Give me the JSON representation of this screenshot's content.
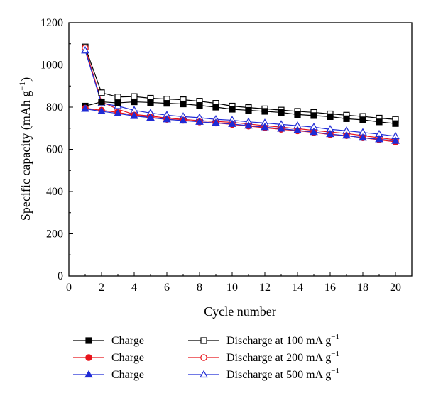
{
  "chart_data": {
    "type": "line",
    "xlabel": "Cycle number",
    "ylabel": "Specific capacity (mAh g",
    "ylabel_sup": "−1",
    "ylabel_close": ")",
    "xlim": [
      0,
      21
    ],
    "ylim": [
      0,
      1200
    ],
    "xticks": [
      0,
      2,
      4,
      6,
      8,
      10,
      12,
      14,
      16,
      18,
      20
    ],
    "yticks": [
      0,
      200,
      400,
      600,
      800,
      1000,
      1200
    ],
    "grid": false,
    "legend_position": "bottom",
    "x": [
      1,
      2,
      3,
      4,
      5,
      6,
      7,
      8,
      9,
      10,
      11,
      12,
      13,
      14,
      15,
      16,
      17,
      18,
      19,
      20
    ],
    "series": [
      {
        "name": "Charge",
        "marker": "square-filled",
        "color": "#000000",
        "values": [
          805,
          825,
          820,
          825,
          822,
          818,
          815,
          808,
          800,
          790,
          785,
          780,
          775,
          765,
          760,
          755,
          745,
          740,
          730,
          722
        ]
      },
      {
        "name": "Charge",
        "marker": "circle-filled",
        "color": "#e8141b",
        "values": [
          795,
          785,
          775,
          762,
          752,
          742,
          738,
          730,
          725,
          718,
          710,
          702,
          695,
          688,
          680,
          670,
          665,
          655,
          645,
          635
        ]
      },
      {
        "name": "Charge",
        "marker": "triangle-filled",
        "color": "#1f2bd6",
        "values": [
          792,
          780,
          770,
          758,
          750,
          742,
          736,
          730,
          725,
          720,
          712,
          705,
          698,
          690,
          682,
          672,
          665,
          655,
          648,
          640
        ]
      },
      {
        "name": "Discharge at 100 mA g",
        "name_sup": "−1",
        "marker": "square-open",
        "color": "#000000",
        "values": [
          1085,
          868,
          848,
          850,
          842,
          838,
          835,
          828,
          818,
          805,
          798,
          792,
          786,
          780,
          775,
          768,
          762,
          756,
          748,
          742
        ]
      },
      {
        "name": "Discharge at 200 mA g",
        "name_sup": "−1",
        "marker": "circle-open",
        "color": "#e8141b",
        "values": [
          1080,
          825,
          790,
          765,
          758,
          748,
          742,
          736,
          732,
          728,
          720,
          712,
          705,
          698,
          690,
          682,
          675,
          665,
          655,
          645
        ]
      },
      {
        "name": "Discharge at 500 mA g",
        "name_sup": "−1",
        "marker": "triangle-open",
        "color": "#1f2bd6",
        "values": [
          1068,
          818,
          805,
          785,
          772,
          762,
          755,
          750,
          742,
          738,
          730,
          725,
          718,
          712,
          705,
          695,
          688,
          680,
          672,
          662
        ]
      }
    ]
  }
}
